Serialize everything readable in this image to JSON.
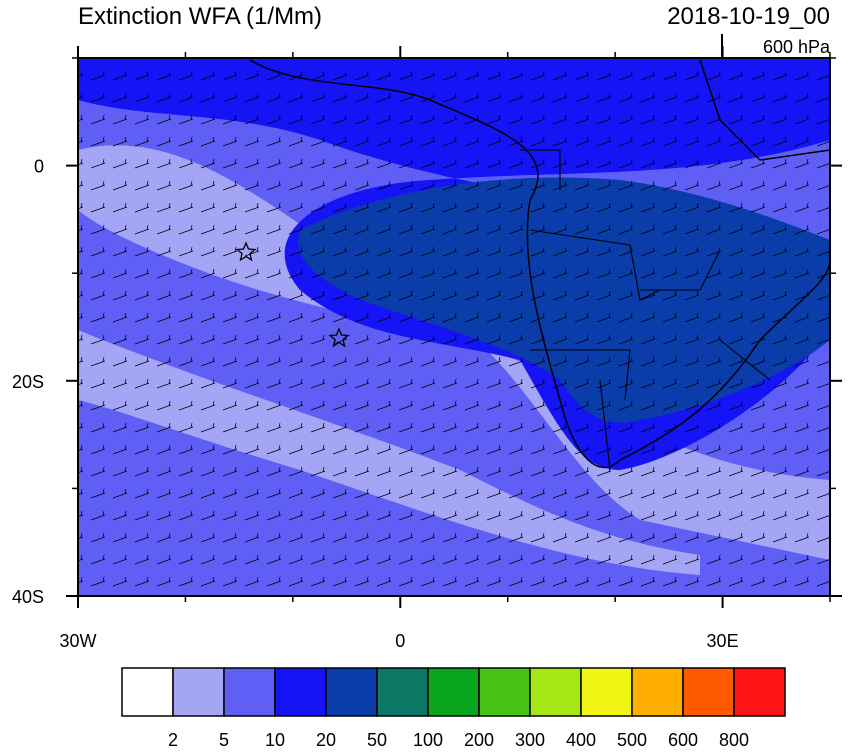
{
  "header": {
    "title": "Extinction WFA (1/Mm)",
    "date": "2018-10-19_00",
    "level": "600 hPa"
  },
  "map": {
    "lon_range": [
      -30,
      40
    ],
    "lat_range": [
      -40,
      10
    ],
    "lon_ticks": [
      {
        "value": -30,
        "label": "30W"
      },
      {
        "value": 0,
        "label": "0"
      },
      {
        "value": 30,
        "label": "30E"
      }
    ],
    "lon_minor_ticks": [
      -20,
      -10,
      10,
      20,
      40
    ],
    "lat_ticks": [
      {
        "value": 0,
        "label": "0"
      },
      {
        "value": -20,
        "label": "20S"
      },
      {
        "value": -40,
        "label": "40S"
      }
    ],
    "lat_minor_ticks": [
      10,
      -10,
      -30
    ]
  },
  "colorbar": {
    "colors": [
      "#ffffff",
      "#a5a5f5",
      "#5f5ff5",
      "#1414f5",
      "#0a3caa",
      "#0a7864",
      "#0aa51e",
      "#46c314",
      "#a5e614",
      "#f0f514",
      "#ffaf00",
      "#ff5a00",
      "#ff1414"
    ],
    "levels": [
      2,
      5,
      10,
      20,
      50,
      100,
      200,
      300,
      400,
      500,
      600,
      800
    ]
  }
}
